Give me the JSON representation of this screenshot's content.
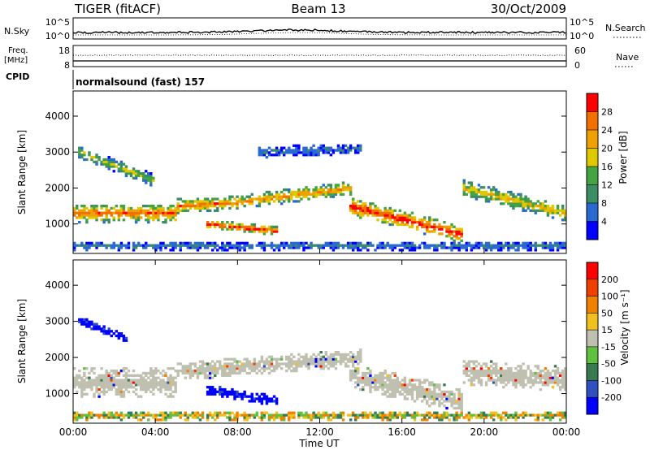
{
  "header": {
    "radar": "TIGER (fitACF)",
    "beam": "Beam 13",
    "date": "30/Oct/2009"
  },
  "status_panels": {
    "nsky_label": "N.Sky",
    "nsky_ticks": [
      "10^5",
      "10^0"
    ],
    "nsearch_label": "N.Search",
    "nsearch_ticks": [
      "10^5",
      "10^0"
    ],
    "freq_label": "Freq.",
    "freq_unit": "[MHz]",
    "freq_ticks": [
      "18",
      "8"
    ],
    "nave_label": "Nave",
    "nave_ticks": [
      "60",
      "0"
    ],
    "cpid_label": "CPID",
    "cpid_text": "normalsound (fast) 157"
  },
  "chart_data": [
    {
      "type": "heatmap",
      "name": "power",
      "ylabel": "Slant Range [km]",
      "xlabel": "",
      "x_ticks": [
        "00:00",
        "04:00",
        "08:00",
        "12:00",
        "16:00",
        "20:00",
        "00:00"
      ],
      "y_ticks": [
        1000,
        2000,
        3000,
        4000
      ],
      "ylim": [
        180,
        4700
      ],
      "xlim_hours": [
        0,
        24
      ],
      "colorbar": {
        "label": "Power [dB]",
        "ticks": [
          "4",
          "8",
          "12",
          "16",
          "20",
          "24",
          "28"
        ],
        "colors": [
          "#0000ff",
          "#2a6ad0",
          "#3c8c64",
          "#44a444",
          "#e0c800",
          "#f0a000",
          "#f07000",
          "#ff0000"
        ]
      },
      "bands": [
        {
          "t": [
            0.0,
            5.0
          ],
          "center": [
            1300,
            1300
          ],
          "width": 500,
          "level": 0.75
        },
        {
          "t": [
            5.0,
            8.0
          ],
          "center": [
            1500,
            1600
          ],
          "width": 400,
          "level": 0.7
        },
        {
          "t": [
            6.5,
            10.0
          ],
          "center": [
            1000,
            800
          ],
          "width": 250,
          "level": 0.85
        },
        {
          "t": [
            8.0,
            13.5
          ],
          "center": [
            1600,
            2000
          ],
          "width": 400,
          "level": 0.65
        },
        {
          "t": [
            13.5,
            19.0
          ],
          "center": [
            1500,
            700
          ],
          "width": 500,
          "level": 0.85
        },
        {
          "t": [
            19.0,
            24.0
          ],
          "center": [
            2000,
            1300
          ],
          "width": 450,
          "level": 0.55
        },
        {
          "t": [
            0.3,
            4.0
          ],
          "center": [
            3000,
            2200
          ],
          "width": 350,
          "level": 0.45
        },
        {
          "t": [
            9.0,
            14.0
          ],
          "center": [
            3000,
            3100
          ],
          "width": 300,
          "level": 0.2
        },
        {
          "t": [
            0.0,
            24.0
          ],
          "center": [
            400,
            400
          ],
          "width": 250,
          "level": 0.2
        }
      ]
    },
    {
      "type": "heatmap",
      "name": "velocity",
      "ylabel": "Slant Range [km]",
      "xlabel": "Time UT",
      "x_ticks": [
        "00:00",
        "04:00",
        "08:00",
        "12:00",
        "16:00",
        "20:00",
        "00:00"
      ],
      "y_ticks": [
        1000,
        2000,
        3000,
        4000
      ],
      "ylim": [
        180,
        4700
      ],
      "xlim_hours": [
        0,
        24
      ],
      "colorbar": {
        "label": "Velocity [m s⁻¹]",
        "ticks": [
          "200",
          "100",
          "50",
          "15",
          "-15",
          "-50",
          "-100",
          "-200"
        ],
        "colors": [
          "#0000ff",
          "#3050c0",
          "#3a7a50",
          "#60c040",
          "#c0c0b0",
          "#f0c020",
          "#f08000",
          "#f04000",
          "#ff0000"
        ]
      },
      "bands": [
        {
          "t": [
            0.0,
            5.0
          ],
          "center": [
            1300,
            1300
          ],
          "width": 800,
          "class": "ground"
        },
        {
          "t": [
            5.0,
            14.0
          ],
          "center": [
            1600,
            2000
          ],
          "width": 500,
          "class": "ground"
        },
        {
          "t": [
            13.5,
            19.0
          ],
          "center": [
            1500,
            800
          ],
          "width": 700,
          "class": "ground"
        },
        {
          "t": [
            19.0,
            24.0
          ],
          "center": [
            1600,
            1400
          ],
          "width": 700,
          "class": "ground"
        },
        {
          "t": [
            6.5,
            10.0
          ],
          "center": [
            1100,
            800
          ],
          "width": 300,
          "class": "toward"
        },
        {
          "t": [
            0.3,
            2.6
          ],
          "center": [
            3050,
            2500
          ],
          "width": 250,
          "class": "toward"
        },
        {
          "t": [
            0.0,
            24.0
          ],
          "center": [
            400,
            400
          ],
          "width": 250,
          "class": "mixed"
        }
      ]
    }
  ]
}
